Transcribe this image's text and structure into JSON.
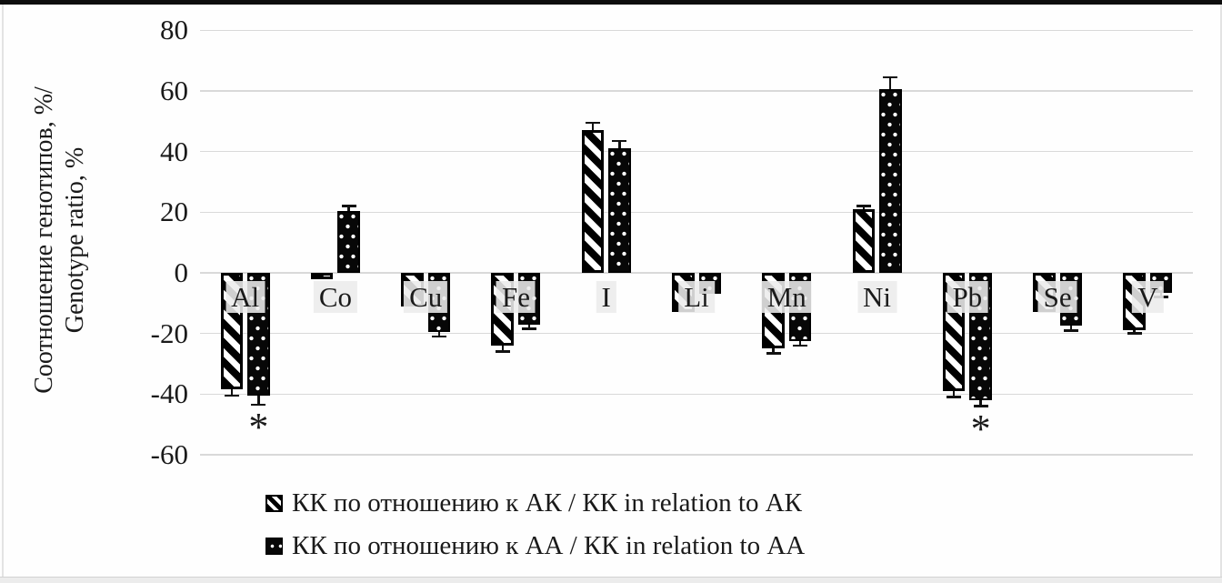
{
  "figure": {
    "y_axis_title_line1": "Соотношение генотипов, %/",
    "y_axis_title_line2": "Genotype ratio, %"
  },
  "legend": [
    {
      "label": "КК по отношению к АК / КК in relation to АК",
      "marker": "hatched-square-icon"
    },
    {
      "label": "КК по отношению к АА / КК in relation to АА",
      "marker": "black-dotted-square-icon"
    }
  ],
  "colors": {
    "bar_fill": "#000000",
    "gridline": "#d9d9d9",
    "text": "#1a1a1a",
    "top_border": "#0d0d0d",
    "label_box": "#ececec",
    "background": "#fefefe"
  },
  "chart_data": {
    "type": "bar",
    "title": "",
    "xlabel": "",
    "ylabel": "Соотношение генотипов, %/ Genotype ratio, %",
    "categories": [
      "Al",
      "Co",
      "Cu",
      "Fe",
      "I",
      "Li",
      "Mn",
      "Ni",
      "Pb",
      "Se",
      "V"
    ],
    "series": [
      {
        "name": "КК по отношению к АК / КК in relation to АК",
        "pattern": "diagonal-hatch",
        "values": [
          -38.5,
          -2,
          -11,
          -24,
          47,
          -13,
          -25,
          21,
          -39,
          -13,
          -19
        ],
        "errors": [
          2,
          0,
          0,
          2,
          2.5,
          0,
          1.5,
          1,
          2,
          0,
          1
        ]
      },
      {
        "name": "КК по отношению к АА / КК in relation to АА",
        "pattern": "white-dots-on-black",
        "values": [
          -40.5,
          20.5,
          -19.5,
          -17,
          41,
          -7,
          -22.5,
          60.5,
          -42,
          -17.5,
          -6.5
        ],
        "errors": [
          3,
          1.5,
          1.5,
          1.5,
          2.5,
          0,
          1.5,
          4,
          2,
          1.5,
          1.5
        ]
      }
    ],
    "significance_marks": [
      {
        "category": "Al",
        "series": 2,
        "symbol": "*"
      },
      {
        "category": "Pb",
        "series": 2,
        "symbol": "*"
      }
    ],
    "yticks": [
      80,
      60,
      40,
      20,
      0,
      -20,
      -40,
      -60
    ],
    "ylim": [
      -60,
      80
    ],
    "grid": true,
    "legend_position": "bottom"
  }
}
